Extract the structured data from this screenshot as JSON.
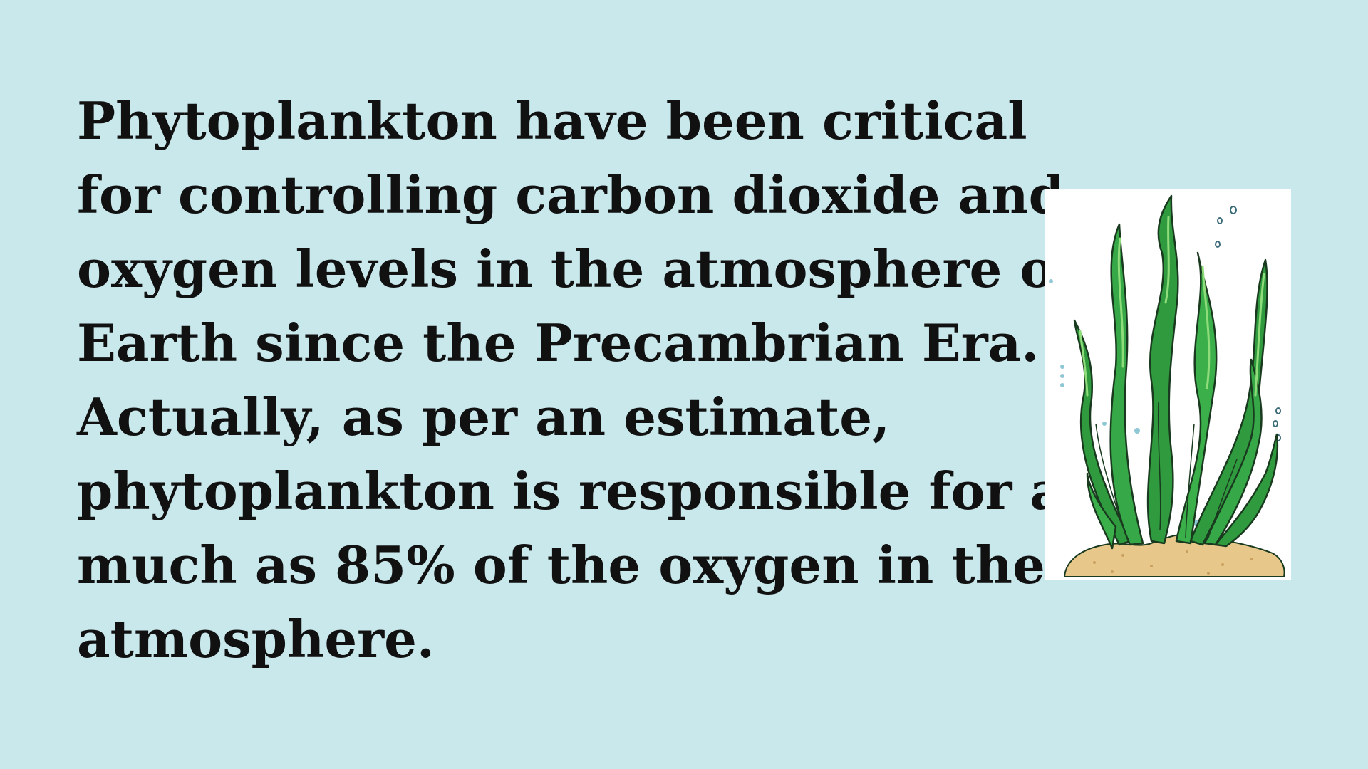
{
  "slide": {
    "background_color": "#c9e8ec",
    "lines": [
      "Phytoplankton have been critical",
      "for controlling carbon dioxide and",
      "oxygen levels in the atmosphere of",
      "Earth since the Precambrian Era.",
      "Actually, as per an estimate,",
      "phytoplankton is responsible for as",
      "much as 85% of the oxygen in the",
      "atmosphere."
    ]
  },
  "illustration": {
    "icon": "seaweed-icon",
    "colors": {
      "leaf": "#2f9a3e",
      "leaf_light": "#6cc35a",
      "outline": "#1a3a1f",
      "sand": "#e7c88a",
      "bubbles": "#8fc7d4"
    }
  }
}
